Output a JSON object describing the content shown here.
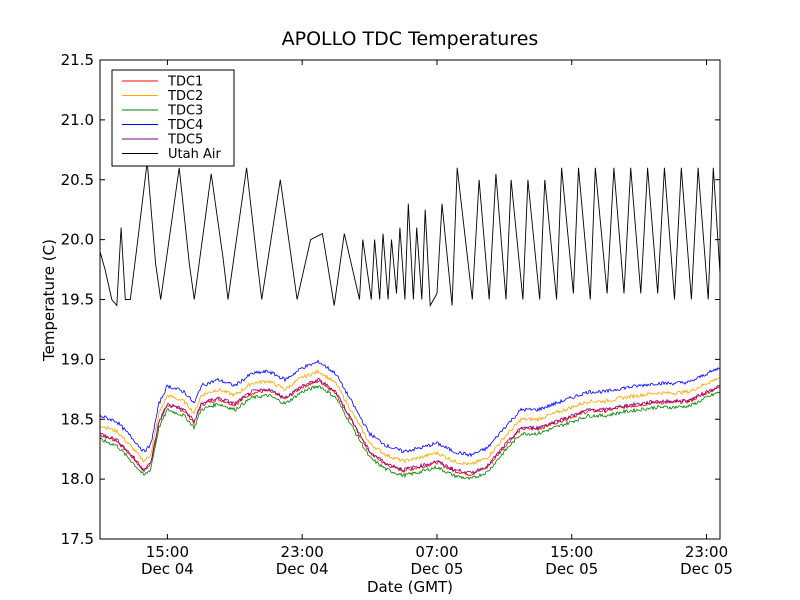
{
  "chart_data": {
    "type": "line",
    "title": "APOLLO TDC Temperatures",
    "xlabel": "Date (GMT)",
    "ylabel": "Temperature (C)",
    "ylim": [
      17.5,
      21.5
    ],
    "xlim_hours": [
      11.0,
      47.8
    ],
    "grid": false,
    "legend_position": "top-left",
    "yticks": [
      "17.5",
      "18.0",
      "18.5",
      "19.0",
      "19.5",
      "20.0",
      "20.5",
      "21.0",
      "21.5"
    ],
    "ytick_values": [
      17.5,
      18.0,
      18.5,
      19.0,
      19.5,
      20.0,
      20.5,
      21.0,
      21.5
    ],
    "xticks": [
      {
        "hour": 15,
        "time": "15:00",
        "date": "Dec 04"
      },
      {
        "hour": 23,
        "time": "23:00",
        "date": "Dec 04"
      },
      {
        "hour": 31,
        "time": "07:00",
        "date": "Dec 05"
      },
      {
        "hour": 39,
        "time": "15:00",
        "date": "Dec 05"
      },
      {
        "hour": 47,
        "time": "23:00",
        "date": "Dec 05"
      }
    ],
    "series": [
      {
        "name": "TDC1",
        "color": "#ff0000",
        "offset": 0.02
      },
      {
        "name": "TDC2",
        "color": "#ffa500",
        "offset": 0.1
      },
      {
        "name": "TDC3",
        "color": "#008000",
        "offset": -0.02
      },
      {
        "name": "TDC4",
        "color": "#0000ff",
        "offset": 0.18
      },
      {
        "name": "TDC5",
        "color": "#800080",
        "offset": 0.03
      },
      {
        "name": "Utah Air",
        "color": "#000000"
      }
    ],
    "tdc_base": {
      "hours": [
        11.0,
        12.0,
        13.0,
        13.6,
        14.0,
        14.5,
        15.0,
        16.0,
        16.6,
        17.0,
        18.0,
        19.0,
        20.0,
        21.0,
        22.0,
        23.0,
        24.0,
        25.0,
        26.0,
        27.0,
        28.0,
        29.0,
        30.0,
        31.0,
        32.0,
        33.0,
        34.0,
        35.0,
        36.0,
        37.0,
        38.0,
        39.0,
        40.0,
        41.0,
        42.0,
        43.0,
        44.0,
        45.0,
        46.0,
        47.0,
        47.8
      ],
      "values": [
        18.35,
        18.3,
        18.15,
        18.05,
        18.1,
        18.45,
        18.6,
        18.55,
        18.45,
        18.6,
        18.65,
        18.6,
        18.7,
        18.72,
        18.65,
        18.75,
        18.8,
        18.7,
        18.45,
        18.2,
        18.1,
        18.05,
        18.08,
        18.12,
        18.05,
        18.02,
        18.08,
        18.25,
        18.4,
        18.4,
        18.45,
        18.5,
        18.55,
        18.55,
        18.58,
        18.6,
        18.62,
        18.62,
        18.63,
        18.7,
        18.75
      ]
    },
    "utah_air": {
      "hours": [
        11.0,
        11.3,
        11.7,
        12.0,
        12.25,
        12.5,
        12.8,
        13.2,
        13.8,
        14.3,
        14.6,
        15.7,
        16.3,
        16.6,
        17.6,
        18.3,
        18.6,
        19.7,
        20.3,
        20.6,
        21.7,
        22.4,
        22.7,
        23.5,
        24.2,
        24.5,
        24.9,
        25.5,
        26.4,
        26.6,
        27.1,
        27.3,
        27.6,
        27.8,
        28.1,
        28.3,
        28.6,
        28.8,
        29.1,
        29.3,
        29.6,
        29.8,
        30.1,
        30.3,
        30.6,
        31.0,
        31.3,
        31.9,
        32.2,
        33.1,
        33.5,
        34.1,
        34.5,
        35.1,
        35.4,
        36.1,
        36.4,
        37.1,
        37.4,
        38.1,
        38.4,
        39.1,
        39.4,
        40.1,
        40.4,
        41.1,
        41.5,
        42.1,
        42.5,
        43.1,
        43.5,
        44.1,
        44.5,
        45.1,
        45.5,
        46.1,
        46.5,
        47.1,
        47.4,
        47.8
      ],
      "values": [
        19.9,
        19.75,
        19.5,
        19.45,
        20.1,
        19.5,
        19.5,
        19.95,
        20.65,
        19.8,
        19.5,
        20.6,
        19.8,
        19.5,
        20.55,
        19.85,
        19.5,
        20.6,
        19.85,
        19.5,
        20.5,
        19.8,
        19.5,
        20.0,
        20.05,
        19.8,
        19.45,
        20.05,
        19.5,
        20.0,
        19.5,
        20.0,
        19.5,
        20.05,
        19.5,
        20.0,
        19.55,
        20.1,
        19.5,
        20.3,
        19.5,
        20.1,
        19.5,
        20.25,
        19.45,
        19.55,
        20.3,
        19.45,
        20.6,
        19.5,
        20.5,
        19.5,
        20.55,
        19.5,
        20.5,
        19.5,
        20.5,
        19.5,
        20.5,
        19.5,
        20.6,
        19.55,
        20.6,
        19.5,
        20.6,
        19.55,
        20.6,
        19.55,
        20.6,
        19.55,
        20.6,
        19.55,
        20.6,
        19.5,
        20.6,
        19.5,
        20.6,
        19.5,
        20.6,
        19.72
      ]
    }
  }
}
